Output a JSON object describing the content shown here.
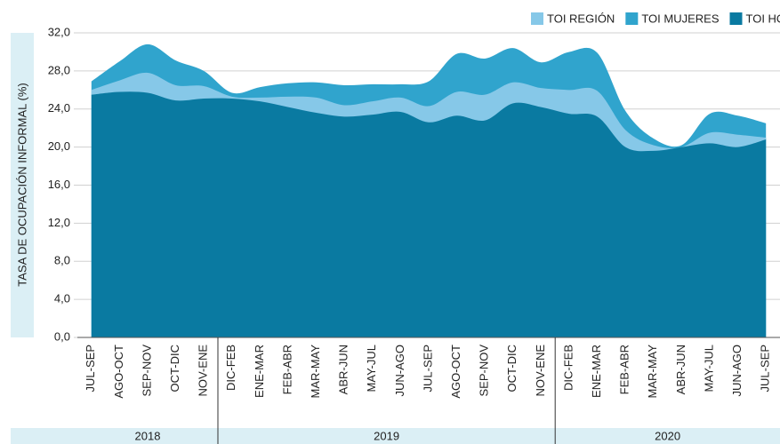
{
  "chart_data": {
    "type": "area",
    "y_label": "TASA DE OCUPACIÓN INFORMAL (%)",
    "categories": [
      "JUL-SEP",
      "AGO-OCT",
      "SEP-NOV",
      "OCT-DIC",
      "NOV-ENE",
      "DIC-FEB",
      "ENE-MAR",
      "FEB-ABR",
      "MAR-MAY",
      "ABR-JUN",
      "MAY-JUL",
      "JUN-AGO",
      "JUL-SEP",
      "AGO-OCT",
      "SEP-NOV",
      "OCT-DIC",
      "NOV-ENE",
      "DIC-FEB",
      "ENE-MAR",
      "FEB-ABR",
      "MAR-MAY",
      "ABR-JUN",
      "MAY-JUL",
      "JUN-AGO",
      "JUL-SEP"
    ],
    "years": [
      "2018",
      "2019",
      "2020"
    ],
    "series": [
      {
        "name": "TOI REGIÓN",
        "color": "#86c8e8",
        "values": [
          26.0,
          27.0,
          27.8,
          26.5,
          26.4,
          25.3,
          25.2,
          25.3,
          25.2,
          24.4,
          24.8,
          25.2,
          24.3,
          25.8,
          25.5,
          26.8,
          26.2,
          26.0,
          25.9,
          21.8,
          20.2,
          20.0,
          21.5,
          21.3,
          21.0
        ]
      },
      {
        "name": "TOI MUJERES",
        "color": "#30a4cd",
        "values": [
          26.9,
          29.0,
          30.8,
          29.1,
          28.0,
          25.7,
          26.3,
          26.7,
          26.8,
          26.5,
          26.6,
          26.6,
          26.9,
          29.8,
          29.3,
          30.4,
          28.9,
          30.0,
          29.9,
          23.8,
          20.9,
          20.2,
          23.5,
          23.3,
          22.5
        ]
      },
      {
        "name": "TOI HOMBRES",
        "color": "#0a7aa1",
        "values": [
          25.5,
          25.8,
          25.7,
          24.9,
          25.1,
          25.1,
          24.8,
          24.2,
          23.6,
          23.2,
          23.4,
          23.7,
          22.6,
          23.3,
          22.8,
          24.6,
          24.2,
          23.5,
          23.2,
          20.0,
          19.6,
          20.0,
          20.4,
          20.0,
          20.8
        ]
      }
    ],
    "ylim": [
      0,
      32
    ],
    "yticks": [
      {
        "value": 0,
        "label": "0,0"
      },
      {
        "value": 4,
        "label": "4,0"
      },
      {
        "value": 8,
        "label": "8,0"
      },
      {
        "value": 12,
        "label": "12,0"
      },
      {
        "value": 16,
        "label": "16,0"
      },
      {
        "value": 20,
        "label": "20,0"
      },
      {
        "value": 24,
        "label": "24,0"
      },
      {
        "value": 28,
        "label": "28,0"
      },
      {
        "value": 32,
        "label": "32,0"
      }
    ],
    "grid": true,
    "legend": "top-right"
  }
}
